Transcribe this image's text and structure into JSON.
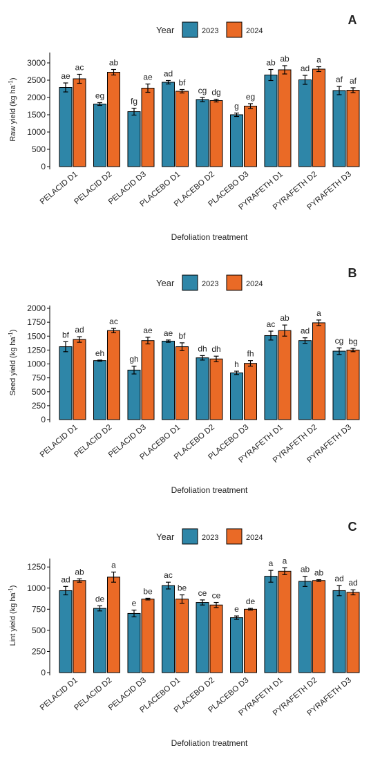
{
  "colors": {
    "y2023": "#2e86a8",
    "y2024": "#ea6a26"
  },
  "legend": {
    "title": "Year",
    "labels": [
      "2023",
      "2024"
    ]
  },
  "chart_data": [
    {
      "type": "bar",
      "panel_label": "A",
      "categories": [
        "PELACID D1",
        "PELACID D2",
        "PELACID D3",
        "PLACEBO D1",
        "PLACEBO D2",
        "PLACEBO D3",
        "PYRAFETH D1",
        "PYRAFETH D2",
        "PYRAFETH D3"
      ],
      "xlabel": "Defoliation treatment",
      "ylabel": "Raw yield (kg ha",
      "ylabel_sup": "-1",
      "ylabel_close": ")",
      "ylim": [
        0,
        3300
      ],
      "yticks": [
        0,
        500,
        1000,
        1500,
        2000,
        2500,
        3000
      ],
      "grid": false,
      "legend_position": "top",
      "series": [
        {
          "name": "2023",
          "values": [
            2290,
            1810,
            1590,
            2440,
            1940,
            1500,
            2650,
            2510,
            2200
          ],
          "errors": [
            130,
            40,
            100,
            50,
            60,
            50,
            160,
            130,
            120
          ],
          "labels": [
            "ae",
            "eg",
            "fg",
            "ad",
            "cg",
            "g",
            "ab",
            "ad",
            "af"
          ]
        },
        {
          "name": "2024",
          "values": [
            2540,
            2730,
            2270,
            2180,
            1910,
            1750,
            2800,
            2820,
            2210
          ],
          "errors": [
            130,
            80,
            120,
            50,
            40,
            70,
            120,
            70,
            70
          ],
          "labels": [
            "ac",
            "ab",
            "ae",
            "bf",
            "dg",
            "eg",
            "ab",
            "a",
            "af"
          ]
        }
      ]
    },
    {
      "type": "bar",
      "panel_label": "B",
      "categories": [
        "PELACID D1",
        "PELACID D2",
        "PELACID D3",
        "PLACEBO D1",
        "PLACEBO D2",
        "PLACEBO D3",
        "PYRAFETH D1",
        "PYRAFETH D2",
        "PYRAFETH D3"
      ],
      "xlabel": "Defoliation treatment",
      "ylabel": "Seed yield (kg ha",
      "ylabel_sup": "-1",
      "ylabel_close": ")",
      "ylim": [
        0,
        2050
      ],
      "yticks": [
        0,
        250,
        500,
        750,
        1000,
        1250,
        1500,
        1750,
        2000
      ],
      "grid": false,
      "legend_position": "top",
      "series": [
        {
          "name": "2023",
          "values": [
            1310,
            1060,
            890,
            1410,
            1110,
            840,
            1510,
            1420,
            1230
          ],
          "errors": [
            90,
            10,
            70,
            20,
            40,
            30,
            80,
            50,
            60
          ],
          "labels": [
            "bf",
            "eh",
            "gh",
            "ae",
            "dh",
            "h",
            "ac",
            "ad",
            "cg"
          ]
        },
        {
          "name": "2024",
          "values": [
            1440,
            1600,
            1420,
            1310,
            1090,
            1010,
            1600,
            1740,
            1250
          ],
          "errors": [
            50,
            40,
            60,
            70,
            50,
            50,
            100,
            50,
            30
          ],
          "labels": [
            "ad",
            "ac",
            "ae",
            "bf",
            "dh",
            "fh",
            "ab",
            "a",
            "bg"
          ]
        }
      ]
    },
    {
      "type": "bar",
      "panel_label": "C",
      "categories": [
        "PELACID D1",
        "PELACID D2",
        "PELACID D3",
        "PLACEBO D1",
        "PLACEBO D2",
        "PLACEBO D3",
        "PYRAFETH D1",
        "PYRAFETH D2",
        "PYRAFETH D3"
      ],
      "xlabel": "Defoliation treatment",
      "ylabel": "Lint yield (kg ha",
      "ylabel_sup": "-1",
      "ylabel_close": ")",
      "ylim": [
        0,
        1350
      ],
      "yticks": [
        0,
        250,
        500,
        750,
        1000,
        1250
      ],
      "grid": false,
      "legend_position": "top",
      "series": [
        {
          "name": "2023",
          "values": [
            970,
            760,
            700,
            1030,
            830,
            650,
            1140,
            1080,
            970
          ],
          "errors": [
            50,
            30,
            40,
            40,
            30,
            20,
            70,
            60,
            60
          ],
          "labels": [
            "ad",
            "de",
            "e",
            "ac",
            "ce",
            "e",
            "a",
            "ab",
            "ad"
          ]
        },
        {
          "name": "2024",
          "values": [
            1090,
            1130,
            870,
            870,
            800,
            750,
            1200,
            1090,
            950
          ],
          "errors": [
            20,
            60,
            10,
            50,
            30,
            10,
            40,
            10,
            30
          ],
          "labels": [
            "ab",
            "a",
            "be",
            "be",
            "ce",
            "de",
            "a",
            "ab",
            "ad"
          ]
        }
      ]
    }
  ]
}
